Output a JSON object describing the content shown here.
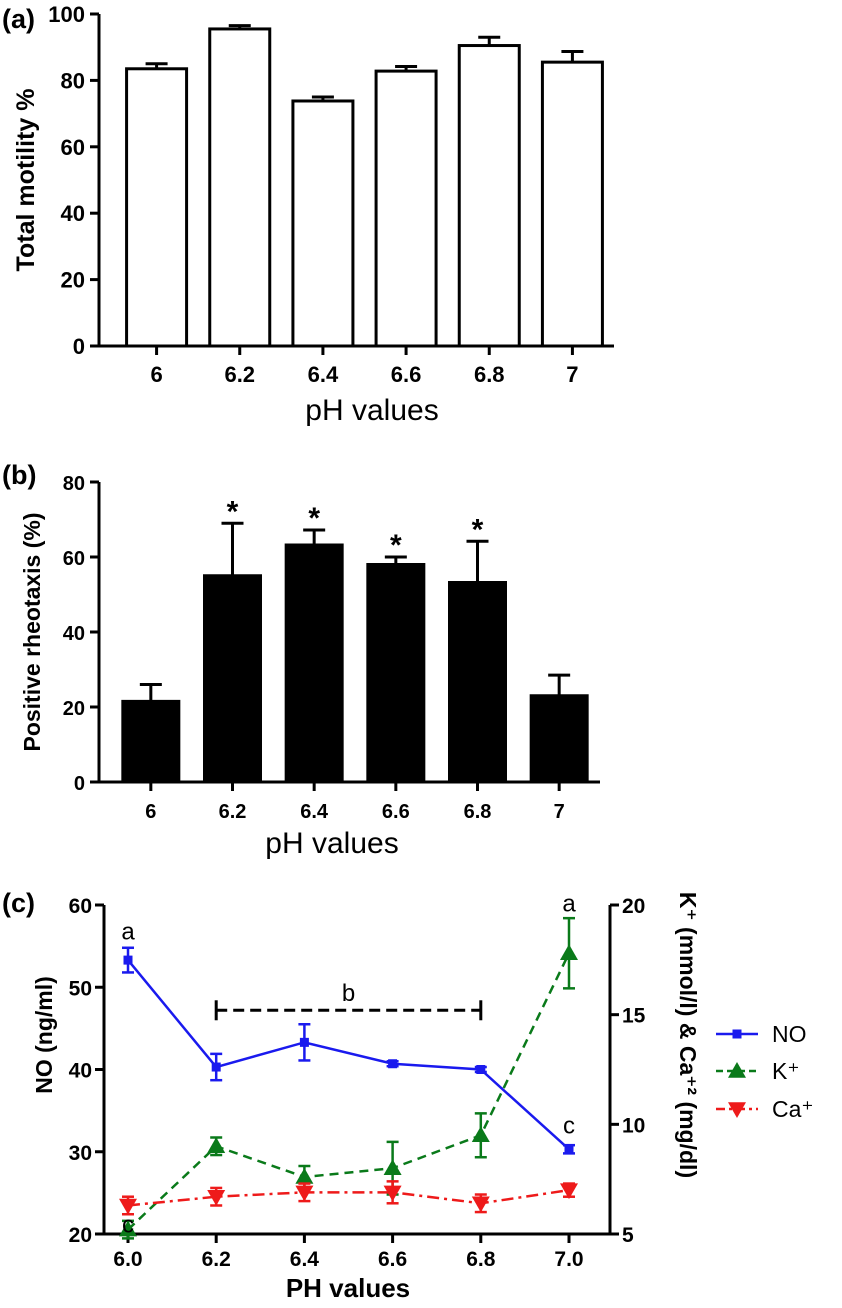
{
  "figure": {
    "panels": [
      "(a)",
      "(b)",
      "(c)"
    ]
  },
  "chart_data": [
    {
      "panel": "(a)",
      "type": "bar",
      "categories": [
        "6",
        "6.2",
        "6.4",
        "6.6",
        "6.8",
        "7"
      ],
      "values": [
        83.5,
        95.5,
        73.8,
        82.8,
        90.5,
        85.5
      ],
      "errors": [
        1.5,
        1.0,
        1.2,
        1.4,
        2.5,
        3.2
      ],
      "bar_color": "#ffffff",
      "xlabel": "pH values",
      "ylabel": "Total motility %",
      "ylim": [
        0,
        100
      ],
      "yticks": [
        "0",
        "20",
        "40",
        "60",
        "80",
        "100"
      ]
    },
    {
      "panel": "(b)",
      "type": "bar",
      "categories": [
        "6",
        "6.2",
        "6.4",
        "6.6",
        "6.8",
        "7"
      ],
      "values": [
        21.5,
        55,
        63.2,
        58,
        53.2,
        23
      ],
      "errors": [
        4.5,
        14,
        4,
        2,
        11,
        5.5
      ],
      "annotations": [
        "",
        "*",
        "*",
        "*",
        "*",
        ""
      ],
      "bar_color": "#000000",
      "xlabel": "pH values",
      "ylabel": "Positive rheotaxis  (%)",
      "ylim": [
        0,
        80
      ],
      "yticks": [
        "0",
        "20",
        "40",
        "60",
        "80"
      ]
    },
    {
      "panel": "(c)",
      "type": "line",
      "x": [
        6.0,
        6.2,
        6.4,
        6.6,
        6.8,
        7.0
      ],
      "xticks": [
        "6.0",
        "6.2",
        "6.4",
        "6.6",
        "6.8",
        "7.0"
      ],
      "xlabel": "PH values",
      "ylabel_left": "NO (ng/ml)",
      "ylabel_right": "K⁺ (mmol/l) & Ca⁺² (mg/dl)",
      "ylim_left": [
        20,
        60
      ],
      "yticks_left": [
        "20",
        "30",
        "40",
        "50",
        "60"
      ],
      "ylim_right": [
        5,
        20
      ],
      "yticks_right": [
        "5",
        "10",
        "15",
        "20"
      ],
      "legend_position": "right",
      "series": [
        {
          "name": "NO",
          "axis": "left",
          "color": "#1a1aee",
          "marker": "square",
          "line": "solid",
          "values": [
            53.3,
            40.3,
            43.3,
            40.7,
            40.0,
            30.3
          ],
          "errors": [
            1.5,
            1.6,
            2.2,
            0.3,
            0.3,
            0.5
          ]
        },
        {
          "name": "K⁺",
          "axis": "right",
          "color": "#0a7a1a",
          "marker": "triangle-up",
          "line": "dashed",
          "values": [
            5.2,
            9.0,
            7.6,
            8.0,
            9.5,
            17.8
          ],
          "errors": [
            0.4,
            0.4,
            0.5,
            1.2,
            1.0,
            1.6
          ]
        },
        {
          "name": "Ca⁺",
          "axis": "right",
          "color": "#ee1a1a",
          "marker": "triangle-down",
          "line": "dashdot",
          "values": [
            6.3,
            6.7,
            6.9,
            6.9,
            6.4,
            7.0
          ],
          "errors": [
            0.4,
            0.4,
            0.4,
            0.5,
            0.4,
            0.3
          ]
        }
      ],
      "annotations": [
        {
          "text": "a",
          "x": 6.0,
          "axis": "left",
          "y": 55.8
        },
        {
          "text": "b",
          "x": 6.5,
          "axis": "left",
          "y": 48.3
        },
        {
          "text": "a",
          "x": 7.0,
          "axis": "right",
          "y": 19.7
        },
        {
          "text": "c",
          "x": 7.0,
          "axis": "left",
          "y": 32.2
        },
        {
          "text": "c",
          "x": 6.0,
          "axis": "left",
          "y": 20.2
        }
      ],
      "bracket": {
        "x_start": 6.2,
        "x_end": 6.8,
        "y": 47.2,
        "axis": "left"
      }
    }
  ]
}
